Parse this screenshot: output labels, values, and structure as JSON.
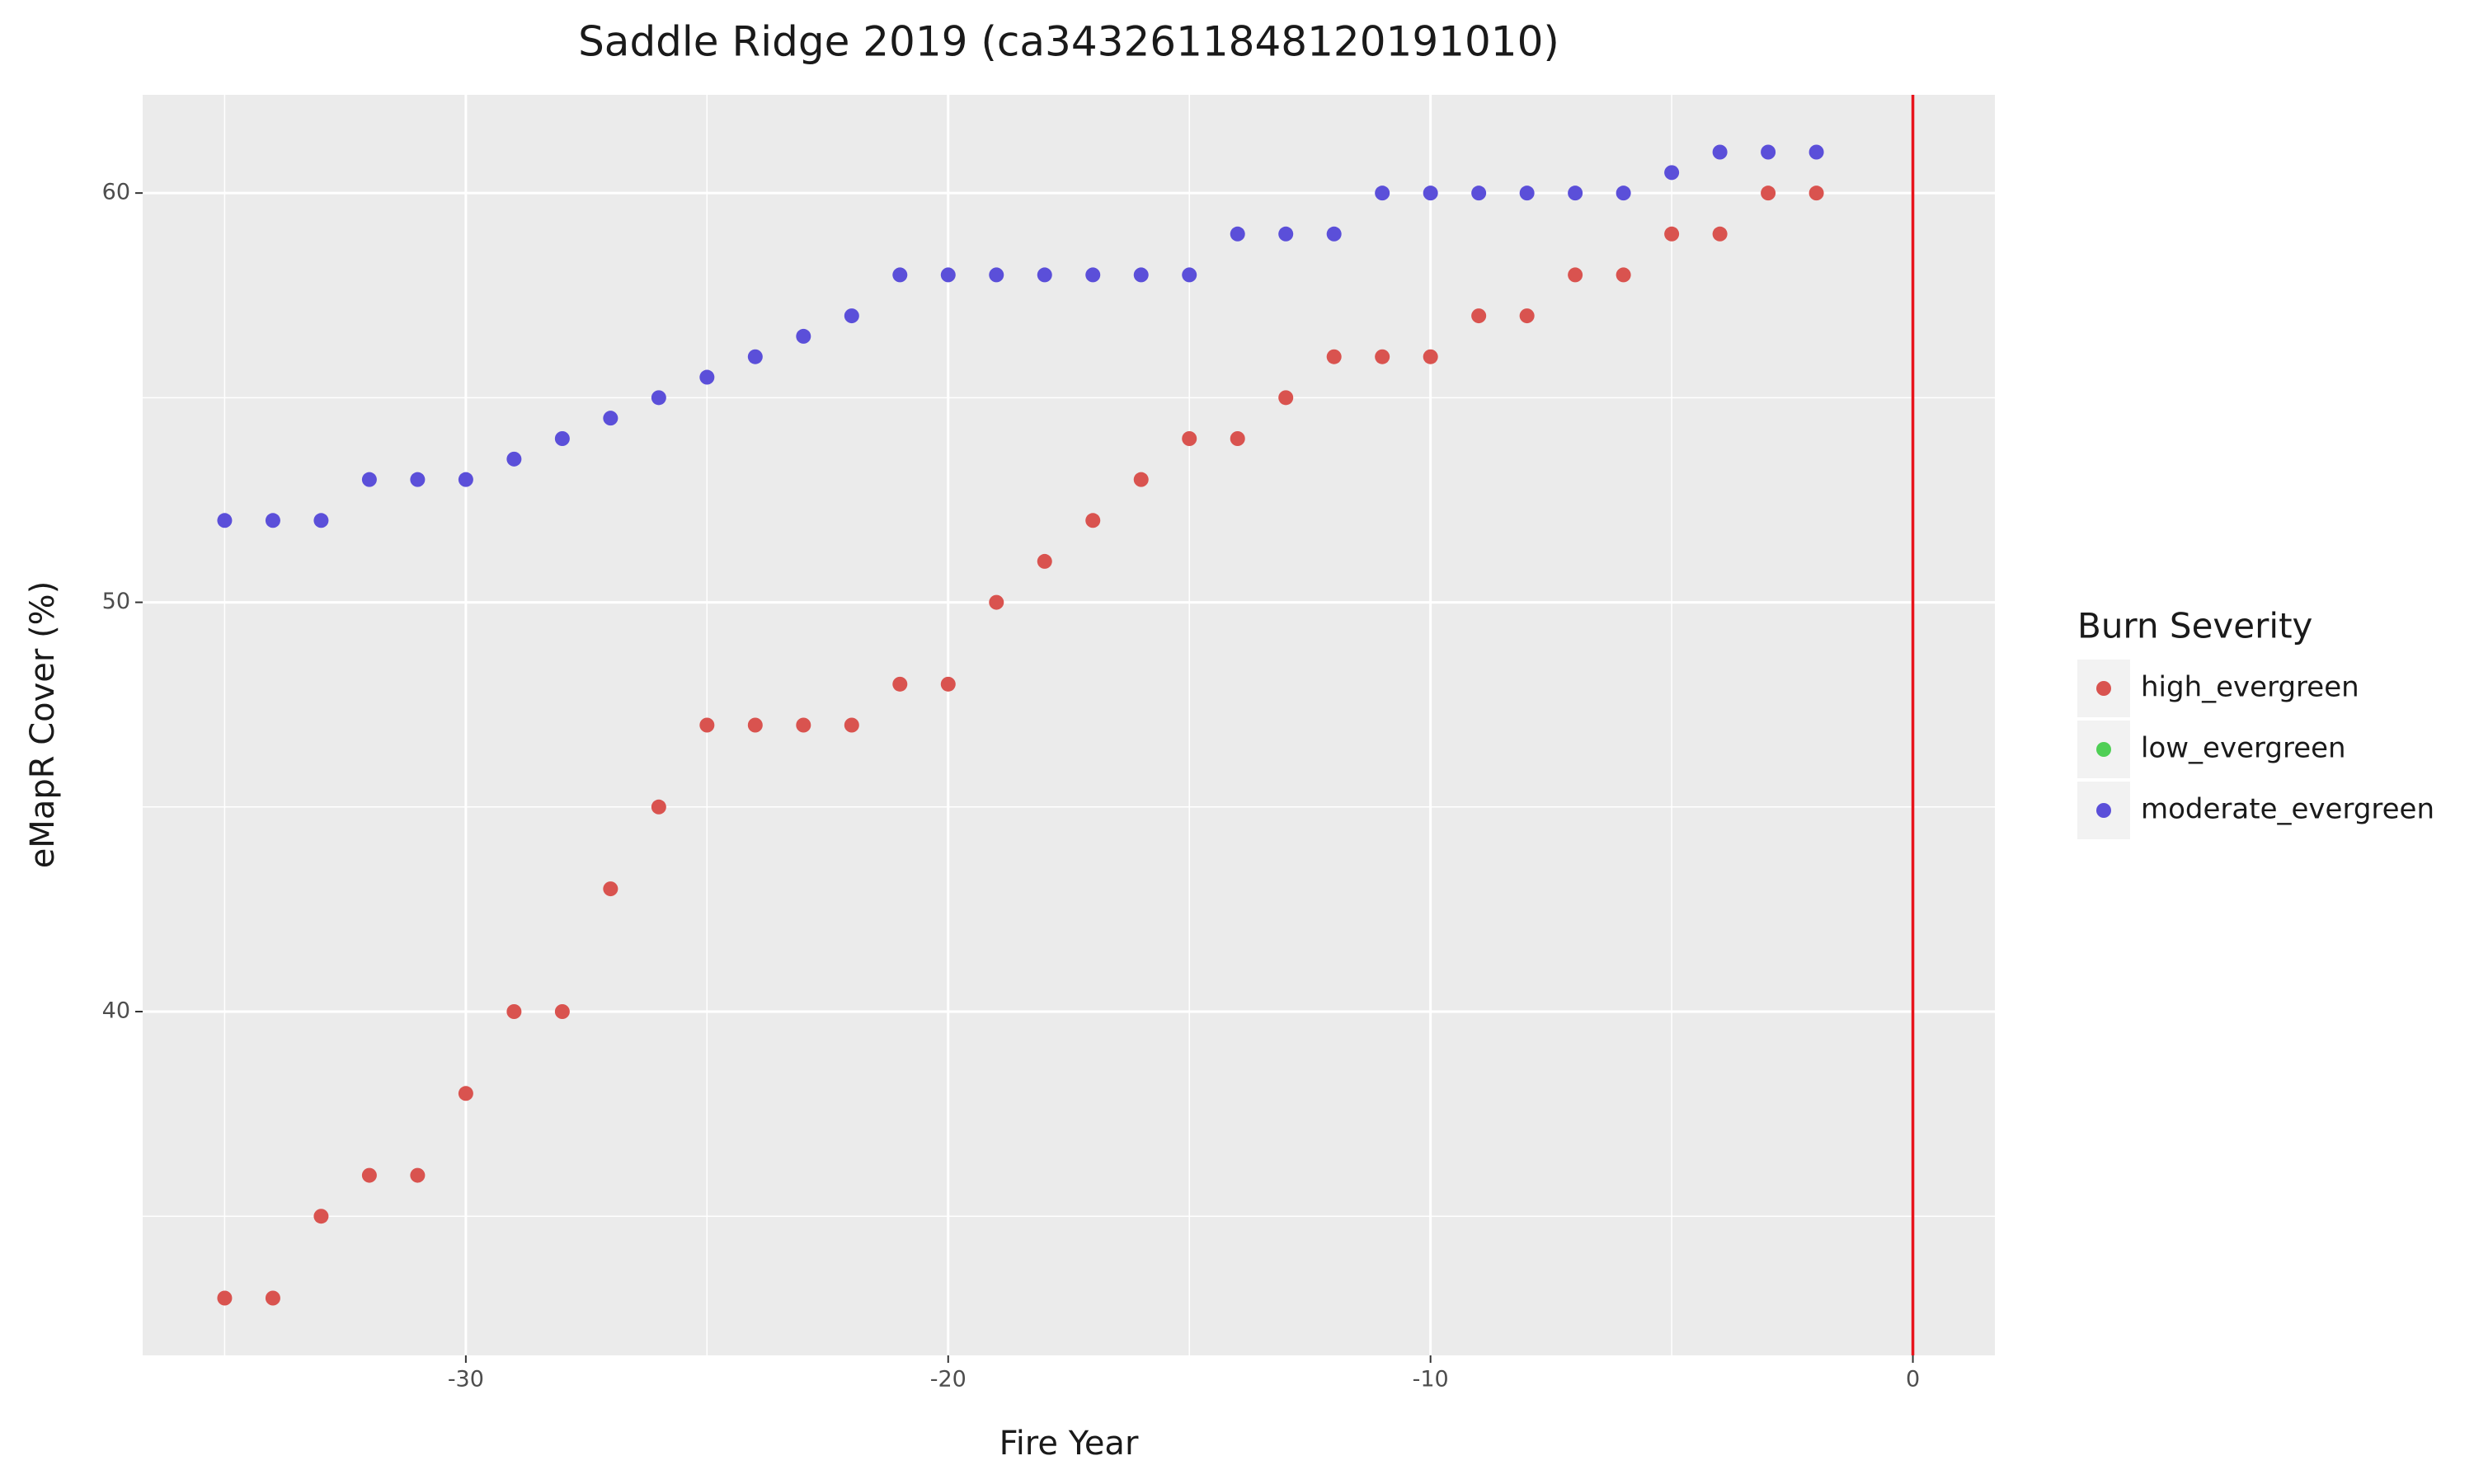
{
  "chart_data": {
    "type": "scatter",
    "title": "Saddle Ridge 2019 (ca3432611848120191010)",
    "x_label": "Fire Year",
    "y_label": "eMapR Cover (%)",
    "legend_title": "Burn Severity",
    "legend_position": "right",
    "xlim": [
      -36.7,
      1.7
    ],
    "ylim": [
      31.6,
      62.4
    ],
    "xticks": [
      -30,
      -20,
      -10,
      0
    ],
    "yticks": [
      40,
      50,
      60
    ],
    "x_minor_ticks": [
      -35,
      -25,
      -15,
      -5
    ],
    "y_minor_ticks": [
      35,
      45,
      55
    ],
    "grid": true,
    "vline": {
      "x": 0,
      "color": "#e8141c"
    },
    "series": [
      {
        "name": "high_evergreen",
        "color": "#d9534f",
        "x": [
          -35,
          -34,
          -33,
          -32,
          -31,
          -30,
          -29,
          -28,
          -27,
          -26,
          -25,
          -24,
          -23,
          -22,
          -21,
          -20,
          -19,
          -18,
          -17,
          -16,
          -15,
          -14,
          -13,
          -12,
          -11,
          -10,
          -9,
          -8,
          -7,
          -6,
          -5,
          -4,
          -3,
          -2
        ],
        "values": [
          33,
          33,
          35,
          36,
          36,
          38,
          40,
          40,
          43,
          45,
          47,
          47,
          47,
          47,
          48,
          48,
          50,
          51,
          52,
          53,
          54,
          54,
          55,
          56,
          56,
          56,
          57,
          57,
          58,
          58,
          59,
          59,
          60,
          60
        ]
      },
      {
        "name": "low_evergreen",
        "color": "#4fcf55",
        "x": [],
        "values": []
      },
      {
        "name": "moderate_evergreen",
        "color": "#5b4fd9",
        "x": [
          -35,
          -34,
          -33,
          -32,
          -31,
          -30,
          -29,
          -28,
          -27,
          -26,
          -25,
          -24,
          -23,
          -22,
          -21,
          -20,
          -19,
          -18,
          -17,
          -16,
          -15,
          -14,
          -13,
          -12,
          -11,
          -10,
          -9,
          -8,
          -7,
          -6,
          -5,
          -4,
          -3,
          -2
        ],
        "values": [
          52,
          52,
          52,
          53,
          53,
          53,
          53.5,
          54,
          54.5,
          55,
          55.5,
          56,
          56.5,
          57,
          58,
          58,
          58,
          58,
          58,
          58,
          58,
          59,
          59,
          59,
          60,
          60,
          60,
          60,
          60,
          60,
          60.5,
          61,
          61,
          61
        ]
      }
    ]
  }
}
